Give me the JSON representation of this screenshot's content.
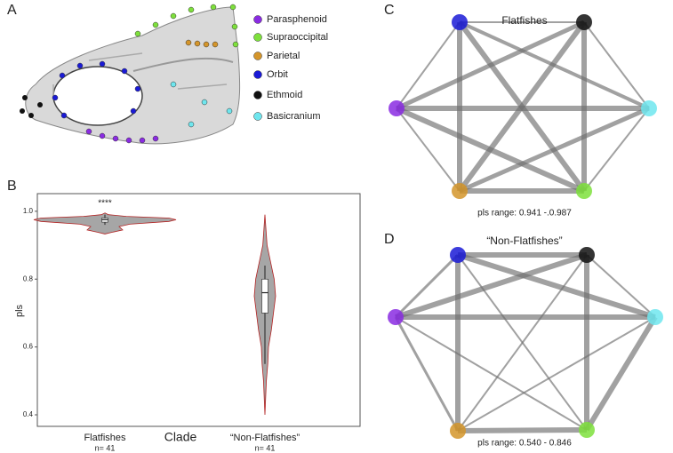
{
  "panel_labels": [
    "A",
    "B",
    "C",
    "D"
  ],
  "legend": [
    {
      "name": "Parasphenoid",
      "color": "#8a2be2"
    },
    {
      "name": "Supraoccipital",
      "color": "#7ee03c"
    },
    {
      "name": "Parietal",
      "color": "#d4952a"
    },
    {
      "name": "Orbit",
      "color": "#1a1ad6"
    },
    {
      "name": "Ethmoid",
      "color": "#111111"
    },
    {
      "name": "Basicranium",
      "color": "#6fe6ee"
    }
  ],
  "chart_data": {
    "type": "violin",
    "ylabel": "pls",
    "xlabel": "Clade",
    "categories": [
      "Flatfishes",
      "“Non-Flatfishes”"
    ],
    "count_labels": [
      "n= 41",
      "n= 41"
    ],
    "annotations": [
      "****",
      null
    ],
    "ylim": [
      0.366,
      1.052
    ],
    "yticks": [
      0.4,
      0.6,
      0.8,
      {
        "value": 1,
        "label": "1.0"
      }
    ],
    "fill": "#a6a6a6",
    "outline": "#b22222",
    "violins": [
      {
        "density": {
          "y": [
            0.995,
            0.99,
            0.985,
            0.98,
            0.975,
            0.97,
            0.962,
            0.955,
            0.945,
            0.938,
            0.933
          ],
          "width": [
            0,
            0.05,
            0.3,
            0.9,
            1.0,
            0.9,
            0.35,
            0.2,
            0.25,
            0.1,
            0
          ]
        },
        "box": {
          "whisker_low": 0.96,
          "q1": 0.968,
          "median": 0.975,
          "q3": 0.98,
          "whisker_high": 0.99
        }
      },
      {
        "density": {
          "y": [
            0.99,
            0.9,
            0.85,
            0.8,
            0.75,
            0.7,
            0.65,
            0.6,
            0.55,
            0.5,
            0.4
          ],
          "width": [
            0,
            0.03,
            0.08,
            0.13,
            0.15,
            0.12,
            0.09,
            0.05,
            0.04,
            0.02,
            0
          ]
        },
        "box": {
          "whisker_low": 0.55,
          "q1": 0.7,
          "median": 0.76,
          "q3": 0.8,
          "whisker_high": 0.84
        }
      }
    ]
  },
  "networks": [
    {
      "title": "Flatfishes",
      "range_label": "pls range: 0.941 -.0.987",
      "node_colors": [
        "#1a1ad6",
        "#111111",
        "#6fe6ee",
        "#7ee03c",
        "#d4952a",
        "#8a2be2"
      ],
      "edges": [
        [
          0,
          1,
          2
        ],
        [
          0,
          2,
          4
        ],
        [
          0,
          3,
          6
        ],
        [
          0,
          4,
          6
        ],
        [
          0,
          5,
          2
        ],
        [
          1,
          2,
          2
        ],
        [
          1,
          3,
          6
        ],
        [
          1,
          4,
          6
        ],
        [
          1,
          5,
          5
        ],
        [
          2,
          3,
          2
        ],
        [
          2,
          4,
          5
        ],
        [
          2,
          5,
          6
        ],
        [
          3,
          4,
          6
        ],
        [
          3,
          5,
          6
        ],
        [
          4,
          5,
          2
        ]
      ]
    },
    {
      "title": "“Non-Flatfishes”",
      "range_label": "pls range: 0.540 - 0.846",
      "node_colors": [
        "#1a1ad6",
        "#111111",
        "#6fe6ee",
        "#7ee03c",
        "#d4952a",
        "#8a2be2"
      ],
      "edges": [
        [
          0,
          1,
          6
        ],
        [
          0,
          2,
          6
        ],
        [
          0,
          3,
          2
        ],
        [
          0,
          4,
          6
        ],
        [
          0,
          5,
          3
        ],
        [
          1,
          2,
          2
        ],
        [
          1,
          3,
          6
        ],
        [
          1,
          4,
          2
        ],
        [
          1,
          5,
          6
        ],
        [
          2,
          3,
          6
        ],
        [
          2,
          4,
          2
        ],
        [
          2,
          5,
          6
        ],
        [
          3,
          4,
          6
        ],
        [
          3,
          5,
          2
        ],
        [
          4,
          5,
          3
        ]
      ]
    }
  ]
}
